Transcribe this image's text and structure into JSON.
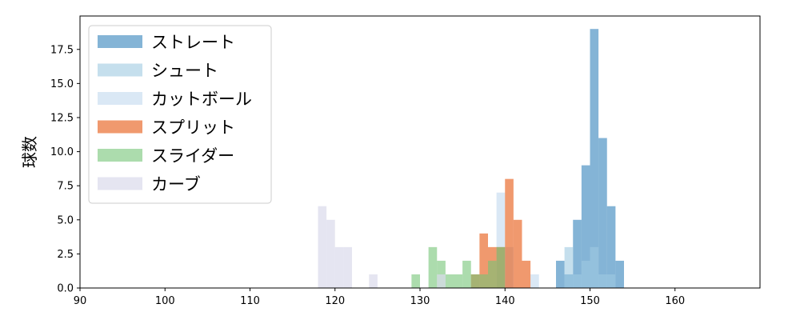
{
  "chart_data": {
    "type": "histogram",
    "ylabel": "球数",
    "xlabel": "",
    "title": "",
    "xlim": [
      90,
      170
    ],
    "ylim": [
      0,
      19.95
    ],
    "xticks": [
      90,
      100,
      110,
      120,
      130,
      140,
      150,
      160
    ],
    "yticks": [
      0.0,
      2.5,
      5.0,
      7.5,
      10.0,
      12.5,
      15.0,
      17.5
    ],
    "ytick_labels": [
      "0.0",
      "2.5",
      "5.0",
      "7.5",
      "10.0",
      "12.5",
      "15.0",
      "17.5"
    ],
    "bin_width": 1,
    "legend_position": "upper-left",
    "grid": false,
    "series": [
      {
        "name": "ストレート",
        "color": "#1f77b4",
        "opacity": 0.55,
        "bins": [
          {
            "x": 146,
            "count": 2
          },
          {
            "x": 147,
            "count": 1
          },
          {
            "x": 148,
            "count": 5
          },
          {
            "x": 149,
            "count": 9
          },
          {
            "x": 150,
            "count": 19
          },
          {
            "x": 151,
            "count": 11
          },
          {
            "x": 152,
            "count": 6
          },
          {
            "x": 153,
            "count": 2
          }
        ]
      },
      {
        "name": "シュート",
        "color": "#9ecae1",
        "opacity": 0.6,
        "bins": [
          {
            "x": 147,
            "count": 3
          },
          {
            "x": 148,
            "count": 1
          },
          {
            "x": 149,
            "count": 2
          },
          {
            "x": 150,
            "count": 3
          },
          {
            "x": 151,
            "count": 1
          },
          {
            "x": 152,
            "count": 1
          }
        ]
      },
      {
        "name": "カットボール",
        "color": "#c6dbef",
        "opacity": 0.65,
        "bins": [
          {
            "x": 139,
            "count": 7
          },
          {
            "x": 140,
            "count": 3
          },
          {
            "x": 143,
            "count": 1
          }
        ]
      },
      {
        "name": "スプリット",
        "color": "#e6550d",
        "opacity": 0.6,
        "bins": [
          {
            "x": 136,
            "count": 1
          },
          {
            "x": 137,
            "count": 4
          },
          {
            "x": 138,
            "count": 3
          },
          {
            "x": 139,
            "count": 3
          },
          {
            "x": 140,
            "count": 8
          },
          {
            "x": 141,
            "count": 5
          },
          {
            "x": 142,
            "count": 2
          }
        ]
      },
      {
        "name": "スライダー",
        "color": "#74c476",
        "opacity": 0.6,
        "bins": [
          {
            "x": 129,
            "count": 1
          },
          {
            "x": 131,
            "count": 3
          },
          {
            "x": 132,
            "count": 2
          },
          {
            "x": 133,
            "count": 1
          },
          {
            "x": 134,
            "count": 1
          },
          {
            "x": 135,
            "count": 2
          },
          {
            "x": 136,
            "count": 1
          },
          {
            "x": 137,
            "count": 1
          },
          {
            "x": 138,
            "count": 2
          },
          {
            "x": 139,
            "count": 3
          }
        ]
      },
      {
        "name": "カーブ",
        "color": "#dadaeb",
        "opacity": 0.7,
        "bins": [
          {
            "x": 118,
            "count": 6
          },
          {
            "x": 119,
            "count": 5
          },
          {
            "x": 120,
            "count": 3
          },
          {
            "x": 121,
            "count": 3
          },
          {
            "x": 124,
            "count": 1
          },
          {
            "x": 132,
            "count": 1
          }
        ]
      }
    ]
  }
}
